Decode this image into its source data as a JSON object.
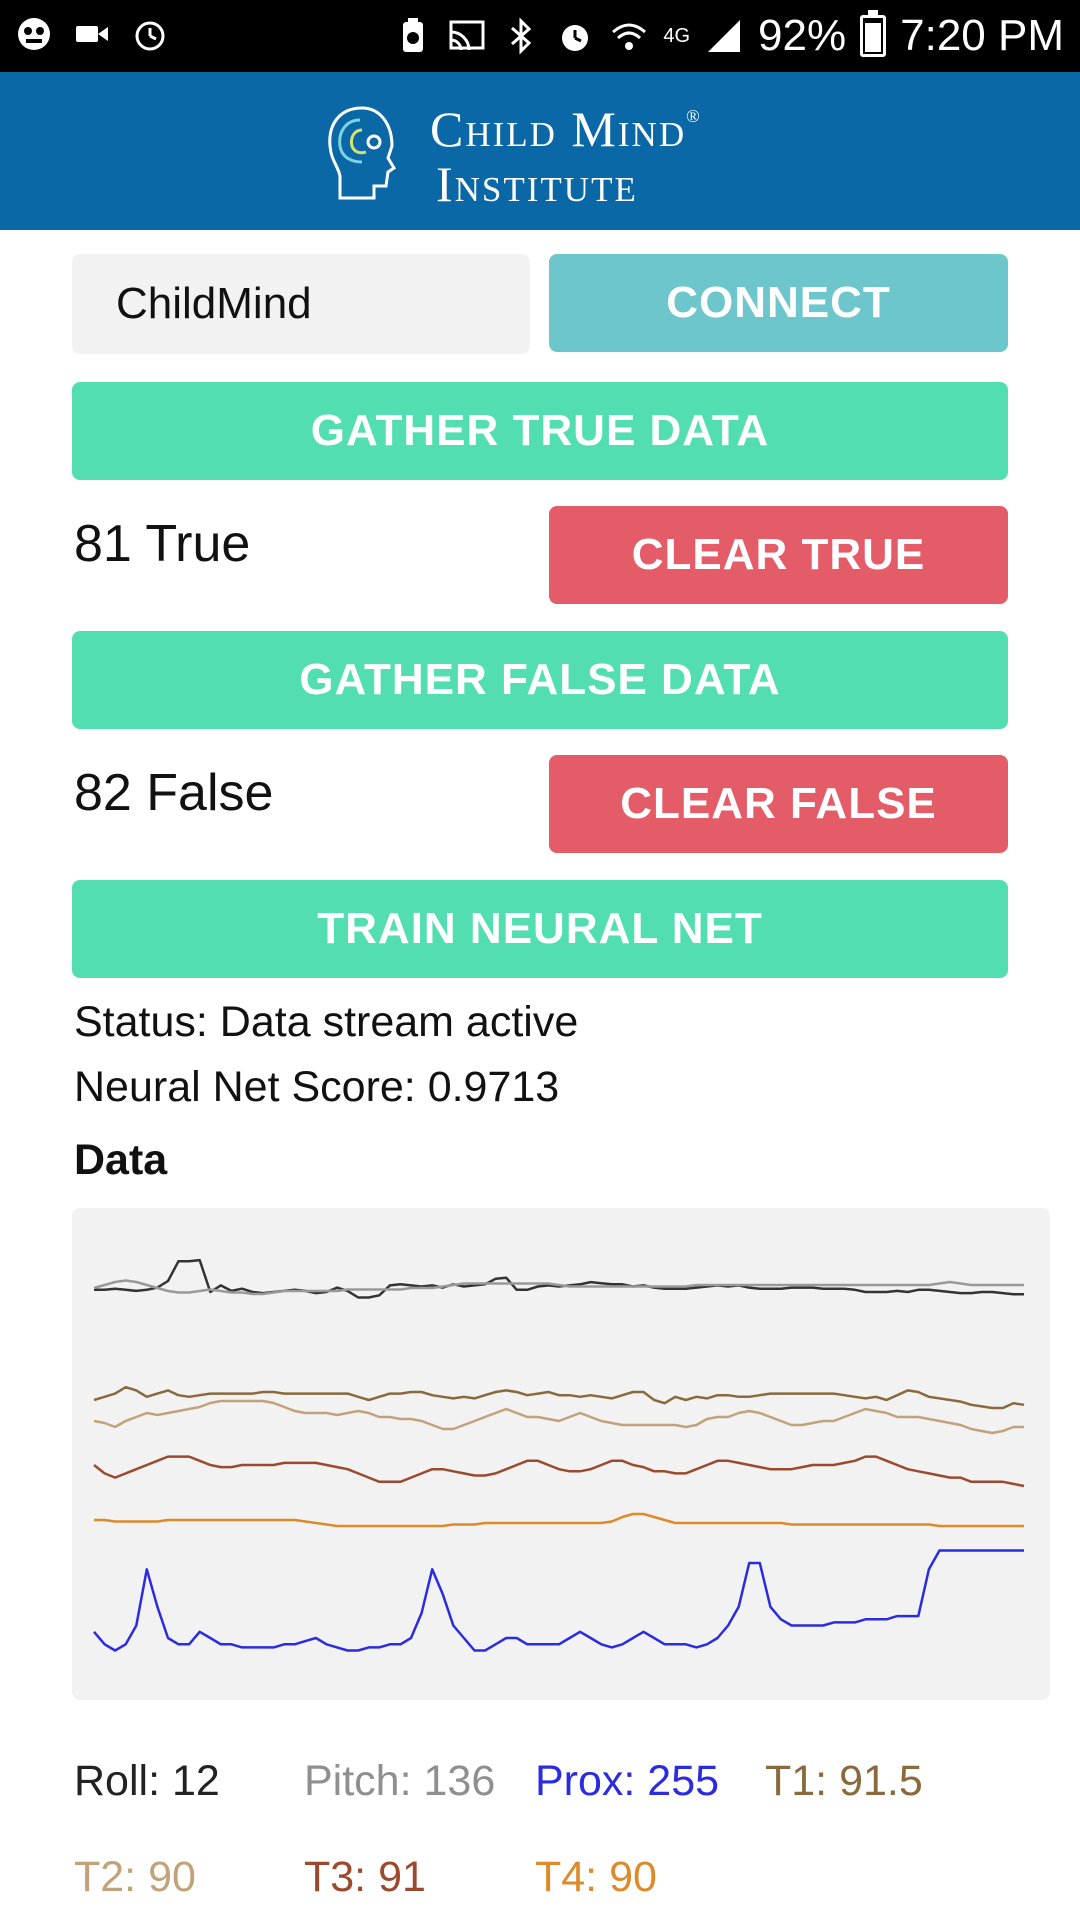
{
  "status_bar": {
    "battery": "92%",
    "time": "7:20 PM",
    "network": "4G",
    "left_icons": [
      "notification-icon",
      "video-camera-icon",
      "alarm-icon"
    ],
    "right_icons": [
      "battery-saver-icon",
      "cast-icon",
      "bluetooth-icon",
      "alarm-icon",
      "wifi-icon",
      "signal-icon"
    ]
  },
  "header": {
    "logo_line1": "Child Mind",
    "logo_line2": "Institute",
    "logo_mark": "®",
    "background": "#0a68a6"
  },
  "device_input": {
    "value": "ChildMind"
  },
  "buttons": {
    "connect": "CONNECT",
    "gather_true": "GATHER TRUE DATA",
    "clear_true": "CLEAR TRUE",
    "gather_false": "GATHER FALSE DATA",
    "clear_false": "CLEAR FALSE",
    "train": "TRAIN NEURAL NET"
  },
  "counts": {
    "true_label": "81 True",
    "false_label": "82 False"
  },
  "status": {
    "status_text": "Status: Data stream active",
    "score_text": "Neural Net Score: 0.9713"
  },
  "data_section": {
    "title": "Data"
  },
  "readings": {
    "roll": "Roll: 12",
    "pitch": "Pitch: 136",
    "prox": "Prox: 255",
    "t1": "T1: 91.5",
    "t2": "T2: 90",
    "t3": "T3: 91",
    "t4": "T4: 90"
  },
  "colors": {
    "connect": "#6ec6cd",
    "green": "#52deb0",
    "red": "#e45c67",
    "roll": "#333333",
    "pitch": "#999999",
    "prox": "#2b2be0",
    "t1": "#8a6a3c",
    "t2": "#c2a27a",
    "t3": "#9b4a2e",
    "t4": "#dd8a2a"
  },
  "chart_data": {
    "type": "line",
    "series": [
      {
        "name": "Roll",
        "color": "#333333",
        "values": [
          62,
          62,
          63,
          62,
          61,
          62,
          64,
          70,
          88,
          88,
          89,
          60,
          66,
          61,
          63,
          60,
          59,
          60,
          61,
          62,
          61,
          59,
          60,
          64,
          61,
          55,
          55,
          57,
          66,
          67,
          66,
          65,
          66,
          64,
          67,
          65,
          66,
          67,
          72,
          73,
          62,
          62,
          65,
          66,
          65,
          66,
          67,
          69,
          68,
          67,
          67,
          65,
          66,
          64,
          63,
          63,
          63,
          64,
          65,
          66,
          65,
          66,
          64,
          63,
          63,
          63,
          64,
          64,
          64,
          63,
          63,
          63,
          62,
          60,
          60,
          60,
          61,
          60,
          62,
          62,
          61,
          60,
          59,
          59,
          60,
          60,
          59,
          58,
          58
        ]
      },
      {
        "name": "Pitch",
        "color": "#999999",
        "values": [
          60,
          62,
          64,
          65,
          64,
          62,
          60,
          58,
          57,
          57,
          58,
          59,
          58,
          57,
          57,
          56,
          56,
          57,
          58,
          58,
          58,
          58,
          58,
          58,
          59,
          59,
          59,
          59,
          59,
          59,
          60,
          60,
          60,
          61,
          62,
          63,
          63,
          63,
          63,
          63,
          63,
          63,
          63,
          63,
          62,
          61,
          61,
          61,
          61,
          61,
          61,
          61,
          61,
          61,
          61,
          61,
          61,
          62,
          62,
          62,
          62,
          62,
          62,
          62,
          62,
          62,
          62,
          62,
          62,
          62,
          62,
          62,
          62,
          62,
          62,
          62,
          62,
          62,
          62,
          62,
          63,
          64,
          63,
          62,
          62,
          62,
          62,
          62,
          62
        ]
      },
      {
        "name": "T1",
        "color": "#8a6a3c",
        "values": [
          30,
          32,
          34,
          38,
          36,
          32,
          34,
          36,
          33,
          32,
          33,
          34,
          34,
          34,
          34,
          34,
          35,
          35,
          34,
          34,
          34,
          34,
          34,
          34,
          34,
          32,
          30,
          32,
          34,
          34,
          35,
          35,
          33,
          32,
          31,
          32,
          31,
          33,
          35,
          36,
          35,
          33,
          34,
          35,
          33,
          33,
          32,
          33,
          32,
          31,
          33,
          35,
          35,
          30,
          28,
          32,
          30,
          32,
          31,
          33,
          33,
          32,
          32,
          33,
          34,
          34,
          34,
          34,
          34,
          34,
          34,
          33,
          32,
          31,
          32,
          30,
          33,
          36,
          35,
          32,
          31,
          30,
          29,
          27,
          26,
          25,
          25,
          28,
          27
        ]
      },
      {
        "name": "T2",
        "color": "#c2a27a",
        "values": [
          36,
          35,
          33,
          36,
          38,
          40,
          39,
          40,
          41,
          42,
          43,
          45,
          46,
          46,
          46,
          46,
          46,
          45,
          43,
          41,
          40,
          40,
          40,
          39,
          40,
          41,
          40,
          38,
          38,
          37,
          37,
          36,
          34,
          32,
          32,
          34,
          36,
          38,
          40,
          42,
          40,
          38,
          38,
          37,
          36,
          38,
          40,
          38,
          36,
          35,
          34,
          34,
          34,
          34,
          34,
          34,
          33,
          34,
          37,
          38,
          38,
          40,
          41,
          40,
          38,
          36,
          34,
          34,
          35,
          36,
          36,
          38,
          40,
          42,
          41,
          40,
          38,
          38,
          38,
          37,
          36,
          35,
          34,
          32,
          31,
          30,
          31,
          33,
          33
        ]
      },
      {
        "name": "T3",
        "color": "#9b4a2e",
        "values": [
          30,
          26,
          24,
          26,
          28,
          30,
          32,
          34,
          34,
          34,
          32,
          30,
          29,
          29,
          30,
          30,
          30,
          30,
          31,
          31,
          31,
          31,
          30,
          29,
          28,
          26,
          24,
          22,
          22,
          22,
          24,
          26,
          28,
          28,
          27,
          26,
          25,
          25,
          26,
          28,
          30,
          32,
          32,
          30,
          28,
          27,
          27,
          28,
          30,
          32,
          32,
          30,
          29,
          27,
          27,
          26,
          26,
          28,
          30,
          32,
          32,
          31,
          30,
          29,
          28,
          28,
          28,
          29,
          30,
          30,
          30,
          31,
          32,
          34,
          34,
          32,
          30,
          28,
          27,
          26,
          25,
          24,
          24,
          22,
          22,
          22,
          22,
          21,
          20
        ]
      },
      {
        "name": "T4",
        "color": "#dd8a2a",
        "values": [
          22,
          22,
          21,
          21,
          21,
          21,
          21,
          22,
          22,
          22,
          22,
          22,
          22,
          22,
          22,
          22,
          22,
          22,
          22,
          22,
          21,
          20,
          19,
          18,
          18,
          18,
          18,
          18,
          18,
          18,
          18,
          18,
          18,
          18,
          19,
          19,
          19,
          20,
          20,
          20,
          20,
          20,
          20,
          20,
          20,
          20,
          20,
          20,
          20,
          21,
          24,
          26,
          26,
          24,
          22,
          20,
          20,
          20,
          20,
          20,
          20,
          20,
          20,
          20,
          20,
          20,
          19,
          19,
          19,
          19,
          19,
          19,
          19,
          19,
          19,
          19,
          19,
          19,
          19,
          19,
          18,
          18,
          18,
          18,
          18,
          18,
          18,
          18,
          18
        ]
      },
      {
        "name": "Prox",
        "color": "#2b2be0",
        "values": [
          10,
          6,
          4,
          6,
          12,
          30,
          18,
          8,
          6,
          6,
          10,
          8,
          6,
          6,
          5,
          5,
          5,
          5,
          6,
          6,
          7,
          8,
          6,
          5,
          4,
          4,
          5,
          5,
          6,
          6,
          8,
          16,
          30,
          22,
          12,
          8,
          4,
          4,
          6,
          8,
          8,
          6,
          6,
          6,
          6,
          8,
          10,
          8,
          6,
          5,
          6,
          8,
          10,
          8,
          6,
          6,
          6,
          5,
          6,
          8,
          12,
          18,
          32,
          32,
          18,
          14,
          12,
          12,
          12,
          12,
          13,
          13,
          13,
          14,
          14,
          14,
          15,
          15,
          15,
          30,
          36,
          36,
          36,
          36,
          36,
          36,
          36,
          36,
          36
        ]
      }
    ],
    "title": "Data",
    "xlabel": "",
    "ylabel": "",
    "grid": false
  }
}
